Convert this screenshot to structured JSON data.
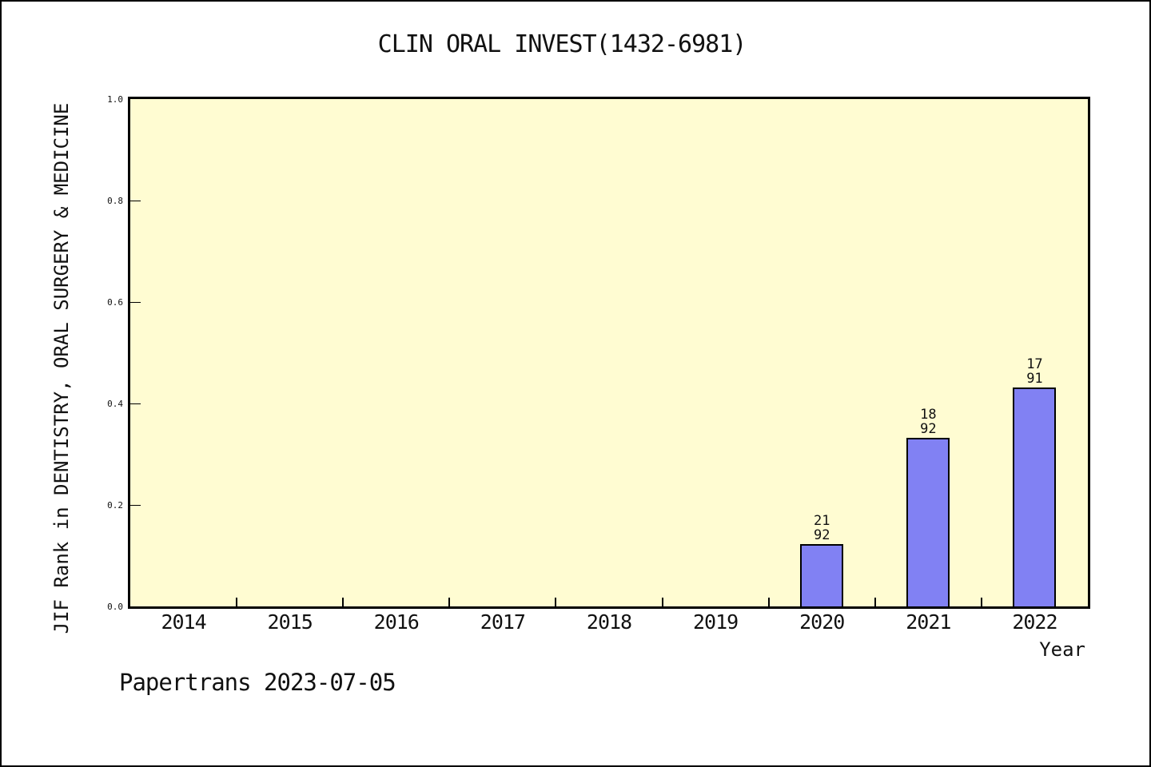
{
  "header": {
    "title": "CLIN ORAL INVEST(1432-6981)"
  },
  "footer": {
    "note": "Papertrans 2023-07-05"
  },
  "colors": {
    "page_bg": "#ffffff",
    "plot_bg": "#fffcd2",
    "bar_fill": "#8181f3",
    "bar_border": "#000000",
    "frame": "#000000",
    "text": "#111111"
  },
  "chart_data": {
    "type": "bar",
    "title": "CLIN ORAL INVEST(1432-6981)",
    "xlabel": "Year",
    "ylabel": "JIF Rank in DENTISTRY, ORAL SURGERY & MEDICINE",
    "categories": [
      "2014",
      "2015",
      "2016",
      "2017",
      "2018",
      "2019",
      "2020",
      "2021",
      "2022"
    ],
    "y_ticks": [
      "0.0",
      "0.2",
      "0.4",
      "0.6",
      "0.8",
      "1.0"
    ],
    "ylim": [
      0,
      1
    ],
    "grid": false,
    "legend": "none",
    "bars": [
      {
        "category": "2020",
        "height_frac": 0.123,
        "rank": "21",
        "total": "92",
        "label": "21/92"
      },
      {
        "category": "2021",
        "height_frac": 0.332,
        "rank": "18",
        "total": "92",
        "label": "18/92"
      },
      {
        "category": "2022",
        "height_frac": 0.432,
        "rank": "17",
        "total": "91",
        "label": "17/91"
      }
    ]
  }
}
